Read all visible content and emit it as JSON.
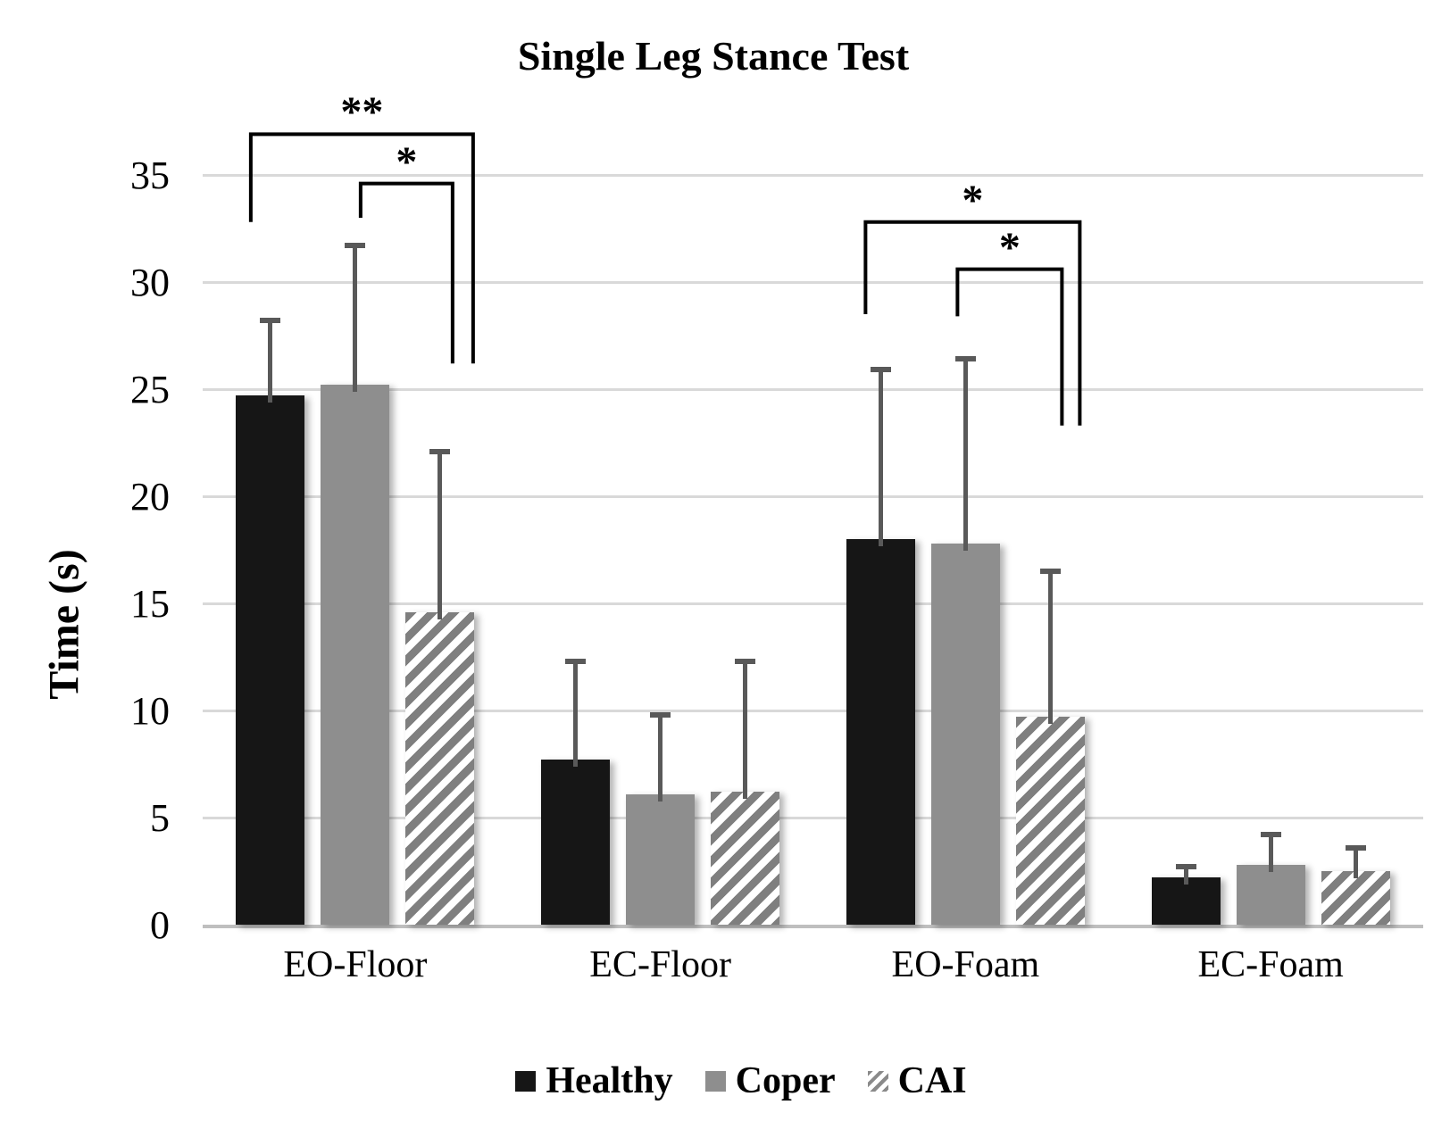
{
  "chart_data": {
    "type": "bar",
    "title": "Single Leg Stance Test",
    "ylabel": "Time (s)",
    "categories": [
      "EO-Floor",
      "EC-Floor",
      "EO-Foam",
      "EC-Foam"
    ],
    "y_ticks": [
      0,
      5,
      10,
      15,
      20,
      25,
      30,
      35
    ],
    "ylim": [
      0,
      35
    ],
    "grid": true,
    "legend_position": "bottom",
    "series": [
      {
        "name": "Healthy",
        "pattern": "solid",
        "color": "#161616",
        "values": [
          24.7,
          7.7,
          18.0,
          2.2
        ],
        "error_up": [
          3.5,
          4.6,
          7.9,
          0.5
        ]
      },
      {
        "name": "Coper",
        "pattern": "solid",
        "color": "#8e8e8e",
        "values": [
          25.2,
          6.1,
          17.8,
          2.8
        ],
        "error_up": [
          6.5,
          3.7,
          8.6,
          1.4
        ]
      },
      {
        "name": "CAI",
        "pattern": "diagonal-hatch",
        "color": "#7f7f7f",
        "values": [
          14.6,
          6.2,
          9.7,
          2.5
        ],
        "error_up": [
          7.5,
          6.1,
          6.8,
          1.1
        ]
      }
    ],
    "significance_brackets": [
      {
        "symbol": "**",
        "group": 0,
        "from_series": 0,
        "to_series": 2,
        "dx_from": -22,
        "dx_to": 37,
        "y_line": 36.9,
        "y_from_end": 32.8,
        "y_to_end": 26.2
      },
      {
        "symbol": "*",
        "group": 0,
        "from_series": 1,
        "to_series": 2,
        "dx_from": 6,
        "dx_to": 14,
        "y_line": 34.6,
        "y_from_end": 33.0,
        "y_to_end": 26.2
      },
      {
        "symbol": "*",
        "group": 2,
        "from_series": 0,
        "to_series": 2,
        "dx_from": -17,
        "dx_to": 33,
        "y_line": 32.8,
        "y_from_end": 28.5,
        "y_to_end": 23.3
      },
      {
        "symbol": "*",
        "group": 2,
        "from_series": 1,
        "to_series": 2,
        "dx_from": -9,
        "dx_to": 13,
        "y_line": 30.6,
        "y_from_end": 28.4,
        "y_to_end": 23.3
      }
    ]
  },
  "colors": {
    "gridline": "#d9d9d9",
    "baseline": "#bfbfbf",
    "error_bar": "#595959",
    "bracket": "#000000",
    "background": "#ffffff"
  }
}
